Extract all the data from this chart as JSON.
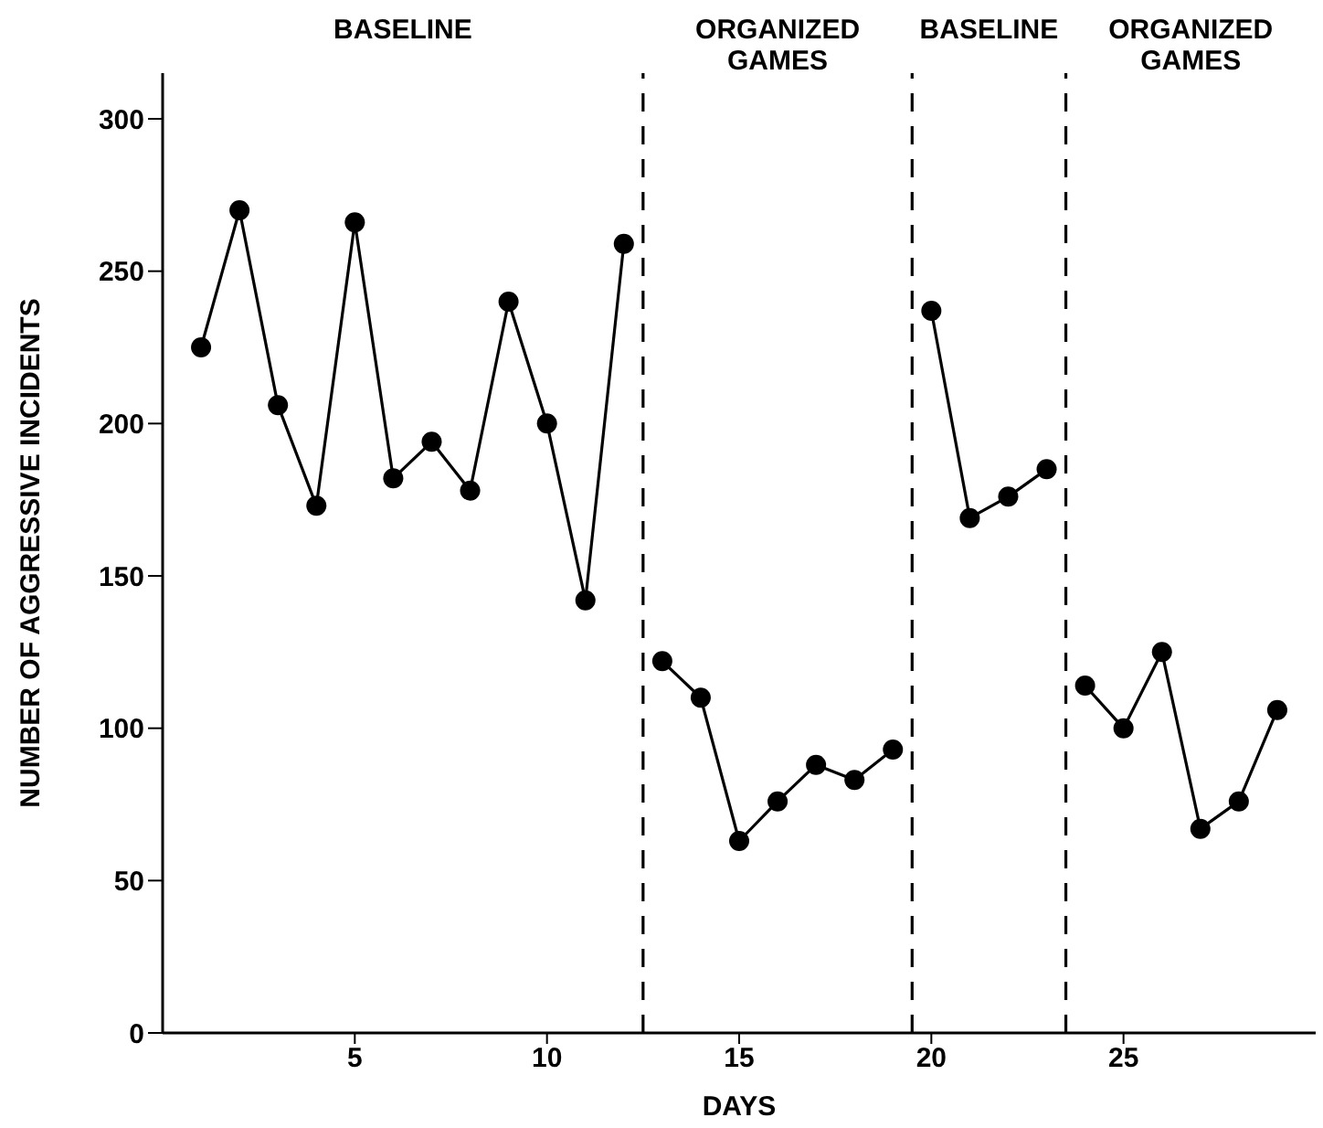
{
  "chart_data": {
    "type": "line",
    "xlabel": "DAYS",
    "ylabel": "NUMBER OF AGGRESSIVE INCIDENTS",
    "annotations": [
      "BASELINE",
      "ORGANIZED GAMES",
      "BASELINE",
      "ORGANIZED GAMES"
    ],
    "series": [
      {
        "color": "#000000",
        "x": [
          1,
          2,
          3,
          4,
          5,
          6,
          7,
          8,
          9,
          10,
          11,
          12
        ],
        "values": [
          225,
          270,
          206,
          173,
          266,
          182,
          194,
          178,
          240,
          200,
          142,
          259
        ]
      },
      {
        "color": "#000000",
        "x": [
          13,
          14,
          15,
          16,
          17,
          18,
          19
        ],
        "values": [
          122,
          110,
          63,
          76,
          88,
          83,
          93
        ]
      },
      {
        "color": "#000000",
        "x": [
          20,
          21,
          22,
          23
        ],
        "values": [
          237,
          169,
          176,
          185
        ]
      },
      {
        "color": "#000000",
        "x": [
          24,
          25,
          26,
          27,
          28,
          29
        ],
        "values": [
          114,
          100,
          125,
          67,
          76,
          106
        ]
      }
    ],
    "ref_lines": [
      {
        "axis": "x",
        "value": 12.5,
        "color": "#000000",
        "line_style": "dashed"
      },
      {
        "axis": "x",
        "value": 19.5,
        "color": "#000000",
        "line_style": "dashed"
      },
      {
        "axis": "x",
        "value": 23.5,
        "color": "#000000",
        "line_style": "dashed"
      }
    ],
    "xlim": [
      0,
      30
    ],
    "xticks": [
      5,
      10,
      15,
      20,
      25
    ],
    "ylim": [
      0,
      315
    ],
    "yticks": [
      0,
      50,
      100,
      150,
      200,
      250,
      300
    ],
    "marker": "circle",
    "line_style": "solid"
  }
}
